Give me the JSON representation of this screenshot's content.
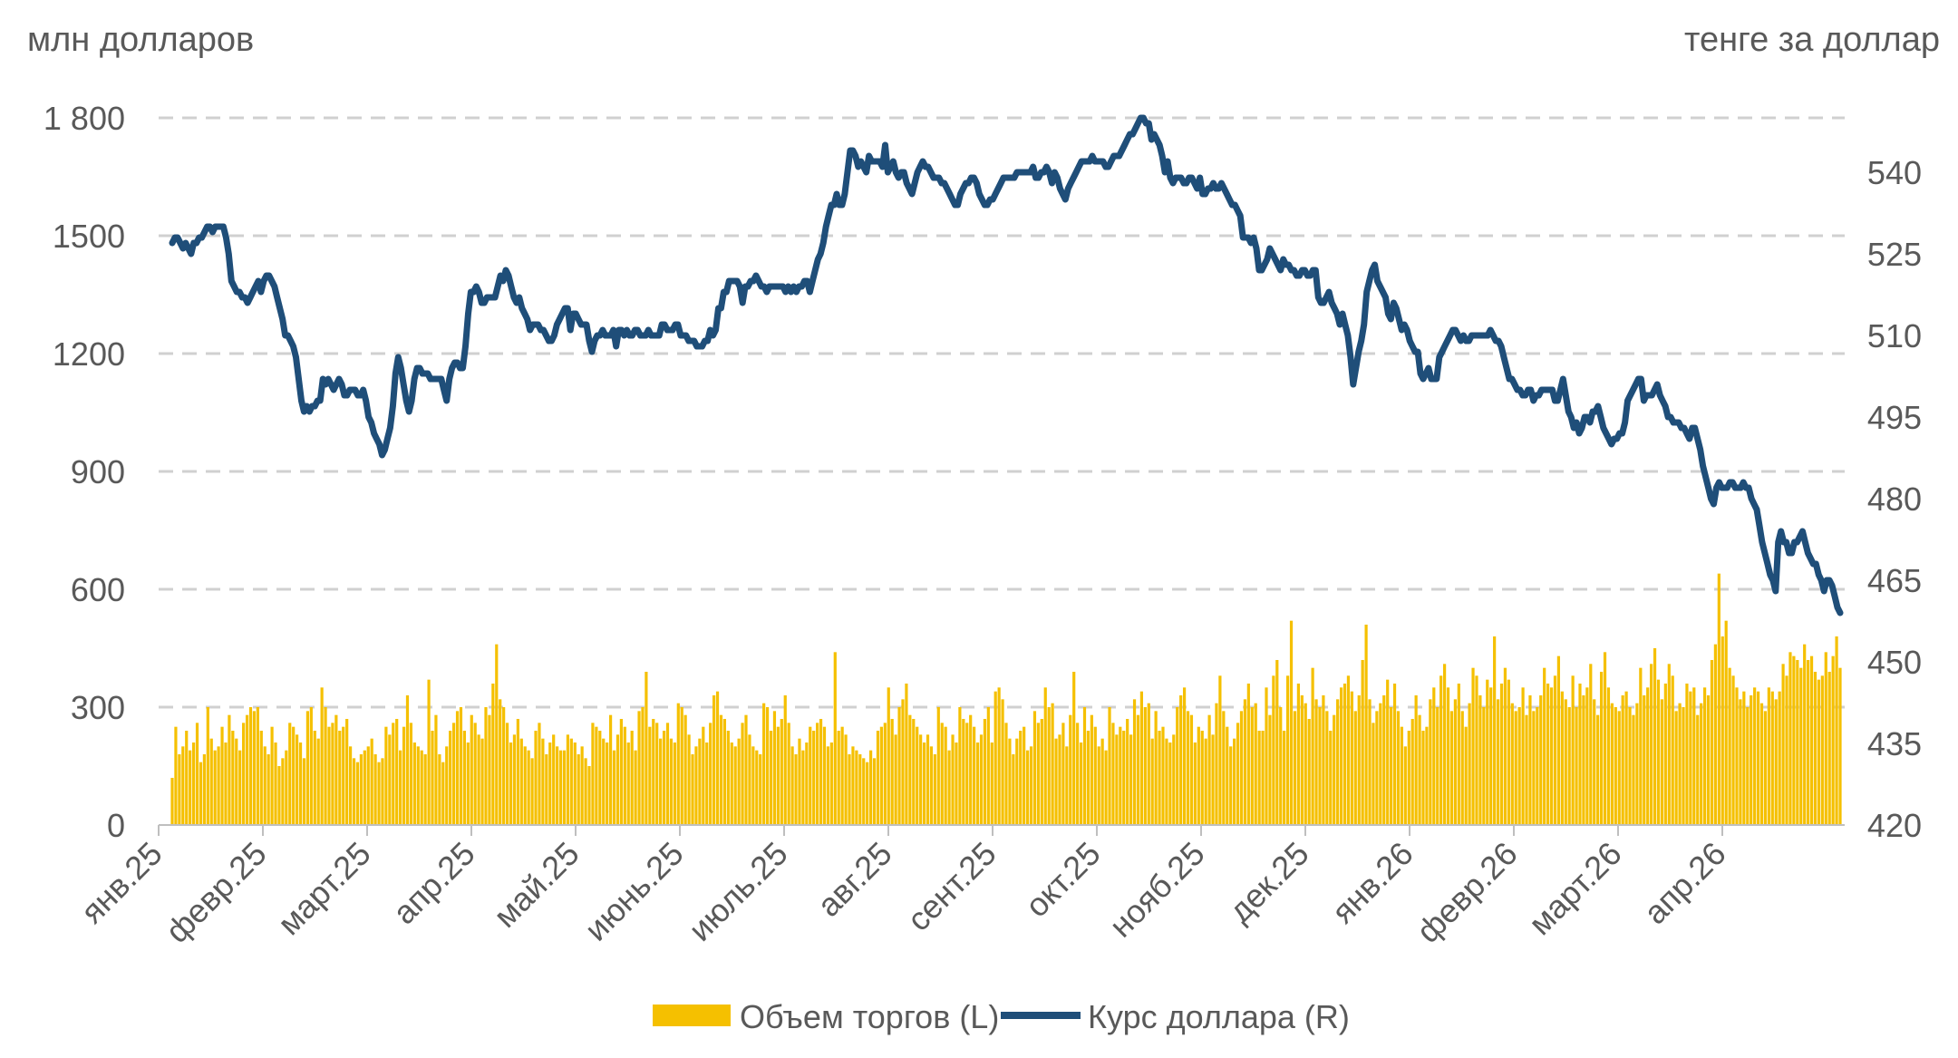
{
  "chart_data": {
    "type": "bar+line",
    "left_unit": "млн долларов",
    "right_unit": "тенге за доллар",
    "y_left": {
      "min": 0,
      "max": 1800,
      "ticks": [
        0,
        300,
        600,
        900,
        1200,
        1500,
        1800
      ],
      "tick_labels": [
        "0",
        "300",
        "600",
        "900",
        "1200",
        "1500",
        "1 800"
      ]
    },
    "y_right": {
      "min": 420,
      "max": 550,
      "ticks": [
        420,
        435,
        450,
        465,
        480,
        495,
        510,
        525,
        540
      ]
    },
    "x_ticks": [
      "янв.25",
      "февр.25",
      "март.25",
      "апр.25",
      "май.25",
      "июнь.25",
      "июль.25",
      "авг.25",
      "сент.25",
      "окт.25",
      "нояб.25",
      "дек.25",
      "янв.26",
      "февр.26",
      "март.26",
      "апр.26"
    ],
    "grid": "horizontal dashed",
    "series": [
      {
        "name": "Объем торгов (L)",
        "type": "bar",
        "axis": "left",
        "color": "#F5C000",
        "values": [
          120,
          250,
          180,
          200,
          240,
          190,
          210,
          260,
          160,
          180,
          300,
          220,
          190,
          200,
          250,
          210,
          280,
          240,
          220,
          190,
          260,
          280,
          300,
          290,
          300,
          240,
          200,
          180,
          250,
          210,
          150,
          170,
          190,
          260,
          250,
          230,
          210,
          170,
          290,
          300,
          240,
          220,
          350,
          300,
          250,
          260,
          280,
          240,
          250,
          270,
          200,
          170,
          160,
          180,
          190,
          200,
          220,
          180,
          160,
          170,
          250,
          230,
          260,
          270,
          190,
          250,
          330,
          260,
          210,
          200,
          190,
          180,
          370,
          240,
          280,
          180,
          160,
          200,
          240,
          260,
          290,
          300,
          240,
          210,
          280,
          260,
          230,
          220,
          300,
          280,
          360,
          460,
          320,
          300,
          260,
          210,
          230,
          270,
          220,
          200,
          190,
          170,
          240,
          260,
          220,
          180,
          210,
          230,
          200,
          190,
          190,
          230,
          220,
          210,
          180,
          200,
          170,
          150,
          260,
          250,
          240,
          220,
          210,
          280,
          190,
          230,
          270,
          250,
          210,
          240,
          190,
          290,
          300,
          390,
          250,
          270,
          260,
          220,
          240,
          260,
          220,
          210,
          310,
          300,
          280,
          230,
          180,
          200,
          220,
          250,
          210,
          260,
          330,
          340,
          280,
          270,
          240,
          210,
          200,
          220,
          260,
          280,
          230,
          200,
          190,
          180,
          310,
          300,
          240,
          290,
          250,
          270,
          330,
          260,
          200,
          180,
          220,
          190,
          210,
          250,
          240,
          260,
          270,
          250,
          200,
          210,
          440,
          240,
          250,
          230,
          180,
          200,
          190,
          180,
          170,
          160,
          190,
          170,
          240,
          250,
          260,
          350,
          270,
          230,
          300,
          320,
          360,
          280,
          270,
          250,
          230,
          210,
          230,
          200,
          180,
          300,
          260,
          250,
          190,
          230,
          210,
          300,
          270,
          260,
          280,
          250,
          210,
          230,
          270,
          300,
          210,
          340,
          350,
          320,
          260,
          220,
          180,
          220,
          240,
          250,
          190,
          200,
          290,
          260,
          270,
          350,
          300,
          310,
          220,
          230,
          260,
          200,
          280,
          390,
          260,
          210,
          300,
          240,
          280,
          250,
          200,
          220,
          190,
          300,
          260,
          230,
          250,
          240,
          270,
          230,
          320,
          280,
          340,
          300,
          310,
          220,
          290,
          240,
          250,
          220,
          210,
          230,
          300,
          330,
          350,
          290,
          280,
          210,
          250,
          240,
          220,
          280,
          230,
          310,
          380,
          290,
          250,
          200,
          220,
          260,
          290,
          320,
          360,
          300,
          310,
          240,
          240,
          350,
          280,
          380,
          420,
          300,
          240,
          380,
          520,
          290,
          360,
          330,
          310,
          270,
          400,
          320,
          300,
          330,
          290,
          240,
          280,
          320,
          350,
          360,
          380,
          340,
          290,
          330,
          420,
          510,
          320,
          260,
          290,
          310,
          330,
          370,
          300,
          360,
          290,
          250,
          200,
          240,
          270,
          330,
          280,
          240,
          250,
          320,
          350,
          300,
          380,
          410,
          350,
          290,
          320,
          360,
          290,
          250,
          310,
          400,
          380,
          330,
          300,
          370,
          350,
          480,
          320,
          360,
          400,
          370,
          310,
          290,
          300,
          350,
          280,
          330,
          290,
          300,
          330,
          400,
          360,
          350,
          380,
          430,
          340,
          320,
          300,
          380,
          300,
          360,
          330,
          350,
          410,
          320,
          280,
          390,
          440,
          350,
          310,
          300,
          290,
          330,
          340,
          300,
          280,
          310,
          400,
          330,
          350,
          410,
          450,
          370,
          320,
          360,
          410,
          380,
          290,
          310,
          300,
          360,
          340,
          350,
          280,
          310,
          350,
          330,
          420,
          460,
          640,
          480,
          520,
          400,
          380,
          350,
          320,
          340,
          300,
          330,
          350,
          340,
          310,
          290,
          350,
          340,
          320,
          340,
          410,
          380,
          440,
          430,
          420,
          400,
          460,
          420,
          430,
          390,
          370,
          380,
          440,
          390,
          430,
          480,
          400
        ]
      },
      {
        "name": "Курс доллара (R)",
        "type": "line",
        "axis": "right",
        "color": "#1F4E79",
        "values": [
          527,
          528,
          528,
          527,
          526,
          527,
          526,
          525,
          527,
          527,
          528,
          528,
          529,
          530,
          530,
          529,
          530,
          530,
          530,
          530,
          528,
          525,
          520,
          519,
          518,
          518,
          517,
          517,
          516,
          517,
          518,
          519,
          520,
          518,
          520,
          521,
          521,
          520,
          519,
          517,
          515,
          513,
          510,
          510,
          509,
          508,
          506,
          502,
          498,
          496,
          497,
          496,
          497,
          497,
          498,
          498,
          502,
          501,
          502,
          501,
          500,
          501,
          502,
          501,
          499,
          499,
          500,
          500,
          500,
          499,
          499,
          500,
          498,
          495,
          494,
          492,
          491,
          490,
          488,
          489,
          491,
          493,
          497,
          503,
          506,
          504,
          501,
          498,
          496,
          498,
          502,
          504,
          504,
          503,
          503,
          503,
          502,
          502,
          502,
          502,
          502,
          500,
          498,
          502,
          504,
          505,
          505,
          504,
          504,
          508,
          514,
          518,
          518,
          519,
          518,
          516,
          516,
          517,
          517,
          517,
          517,
          519,
          521,
          520,
          522,
          521,
          519,
          517,
          516,
          517,
          515,
          514,
          513,
          511,
          512,
          512,
          512,
          511,
          511,
          510,
          509,
          509,
          510,
          512,
          513,
          514,
          515,
          515,
          511,
          514,
          514,
          513,
          512,
          512,
          512,
          509,
          507,
          509,
          510,
          510,
          511,
          510,
          510,
          510,
          511,
          508,
          511,
          511,
          510,
          511,
          510,
          510,
          511,
          511,
          510,
          510,
          510,
          511,
          510,
          510,
          510,
          510,
          512,
          512,
          511,
          511,
          511,
          512,
          512,
          510,
          510,
          510,
          509,
          509,
          509,
          508,
          508,
          508,
          509,
          509,
          511,
          510,
          511,
          515,
          515,
          518,
          518,
          520,
          520,
          520,
          520,
          519,
          516,
          519,
          519,
          520,
          520,
          521,
          520,
          519,
          519,
          518,
          519,
          519,
          519,
          519,
          519,
          519,
          518,
          519,
          518,
          519,
          518,
          519,
          519,
          520,
          520,
          518,
          520,
          522,
          524,
          525,
          527,
          530,
          532,
          534,
          534,
          536,
          534,
          534,
          536,
          540,
          544,
          544,
          543,
          541,
          542,
          541,
          540,
          543,
          542,
          542,
          542,
          542,
          541,
          545,
          540,
          541,
          542,
          540,
          539,
          540,
          540,
          538,
          537,
          536,
          538,
          540,
          541,
          542,
          541,
          541,
          540,
          539,
          539,
          539,
          538,
          538,
          537,
          536,
          535,
          534,
          534,
          536,
          537,
          538,
          538,
          539,
          539,
          538,
          536,
          535,
          534,
          534,
          535,
          535,
          536,
          537,
          538,
          539,
          539,
          539,
          539,
          539,
          540,
          540,
          540,
          540,
          540,
          540,
          541,
          539,
          539,
          540,
          540,
          541,
          540,
          538,
          540,
          539,
          537,
          536,
          535,
          537,
          538,
          539,
          540,
          541,
          542,
          542,
          542,
          542,
          543,
          542,
          542,
          542,
          542,
          541,
          541,
          542,
          543,
          543,
          543,
          544,
          545,
          546,
          547,
          547,
          548,
          549,
          550,
          550,
          549,
          549,
          546,
          547,
          546,
          545,
          543,
          540,
          542,
          539,
          538,
          539,
          539,
          539,
          538,
          538,
          539,
          539,
          538,
          537,
          539,
          536,
          536,
          537,
          537,
          538,
          537,
          537,
          538,
          537,
          536,
          535,
          534,
          534,
          533,
          532,
          528,
          528,
          528,
          527,
          528,
          526,
          522,
          522,
          523,
          524,
          526,
          525,
          524,
          523,
          522,
          524,
          523,
          523,
          522,
          522,
          521,
          521,
          522,
          522,
          521,
          521,
          522,
          522,
          517,
          516,
          516,
          517,
          518,
          516,
          515,
          514,
          512,
          514,
          512,
          510,
          506,
          501,
          504,
          507,
          509,
          512,
          518,
          520,
          522,
          523,
          520,
          519,
          518,
          517,
          514,
          513,
          516,
          515,
          513,
          511,
          512,
          511,
          509,
          508,
          507,
          507,
          503,
          502,
          503,
          504,
          502,
          502,
          502,
          506,
          507,
          508,
          509,
          510,
          511,
          511,
          510,
          509,
          510,
          509,
          509,
          510,
          510,
          510,
          510,
          510,
          510,
          510,
          511,
          510,
          509,
          509,
          508,
          506,
          504,
          502,
          502,
          501,
          500,
          500,
          499,
          499,
          500,
          500,
          498,
          499,
          499,
          500,
          500,
          500,
          500,
          500,
          498,
          498,
          500,
          502,
          499,
          496,
          495,
          493,
          494,
          492,
          493,
          495,
          495,
          494,
          496,
          496,
          497,
          495,
          493,
          492,
          491,
          490,
          491,
          491,
          492,
          492,
          494,
          498,
          499,
          500,
          501,
          502,
          502,
          498,
          499,
          499,
          499,
          500,
          501,
          499,
          498,
          497,
          495,
          495,
          494,
          494,
          494,
          493,
          493,
          492,
          491,
          493,
          493,
          491,
          489,
          486,
          484,
          482,
          480,
          479,
          482,
          483,
          482,
          482,
          482,
          483,
          483,
          482,
          482,
          482,
          483,
          482,
          482,
          480,
          479,
          478,
          475,
          472,
          470,
          468,
          466,
          465,
          463,
          472,
          474,
          472,
          472,
          470,
          470,
          472,
          472,
          473,
          474,
          472,
          470,
          469,
          468,
          468,
          466,
          465,
          463,
          465,
          465,
          464,
          462,
          460,
          459
        ]
      }
    ]
  },
  "legend": [
    {
      "label": "Объем торгов (L)",
      "color": "#F5C000",
      "kind": "bar"
    },
    {
      "label": "Курс доллара (R)",
      "color": "#1F4E79",
      "kind": "line"
    }
  ]
}
